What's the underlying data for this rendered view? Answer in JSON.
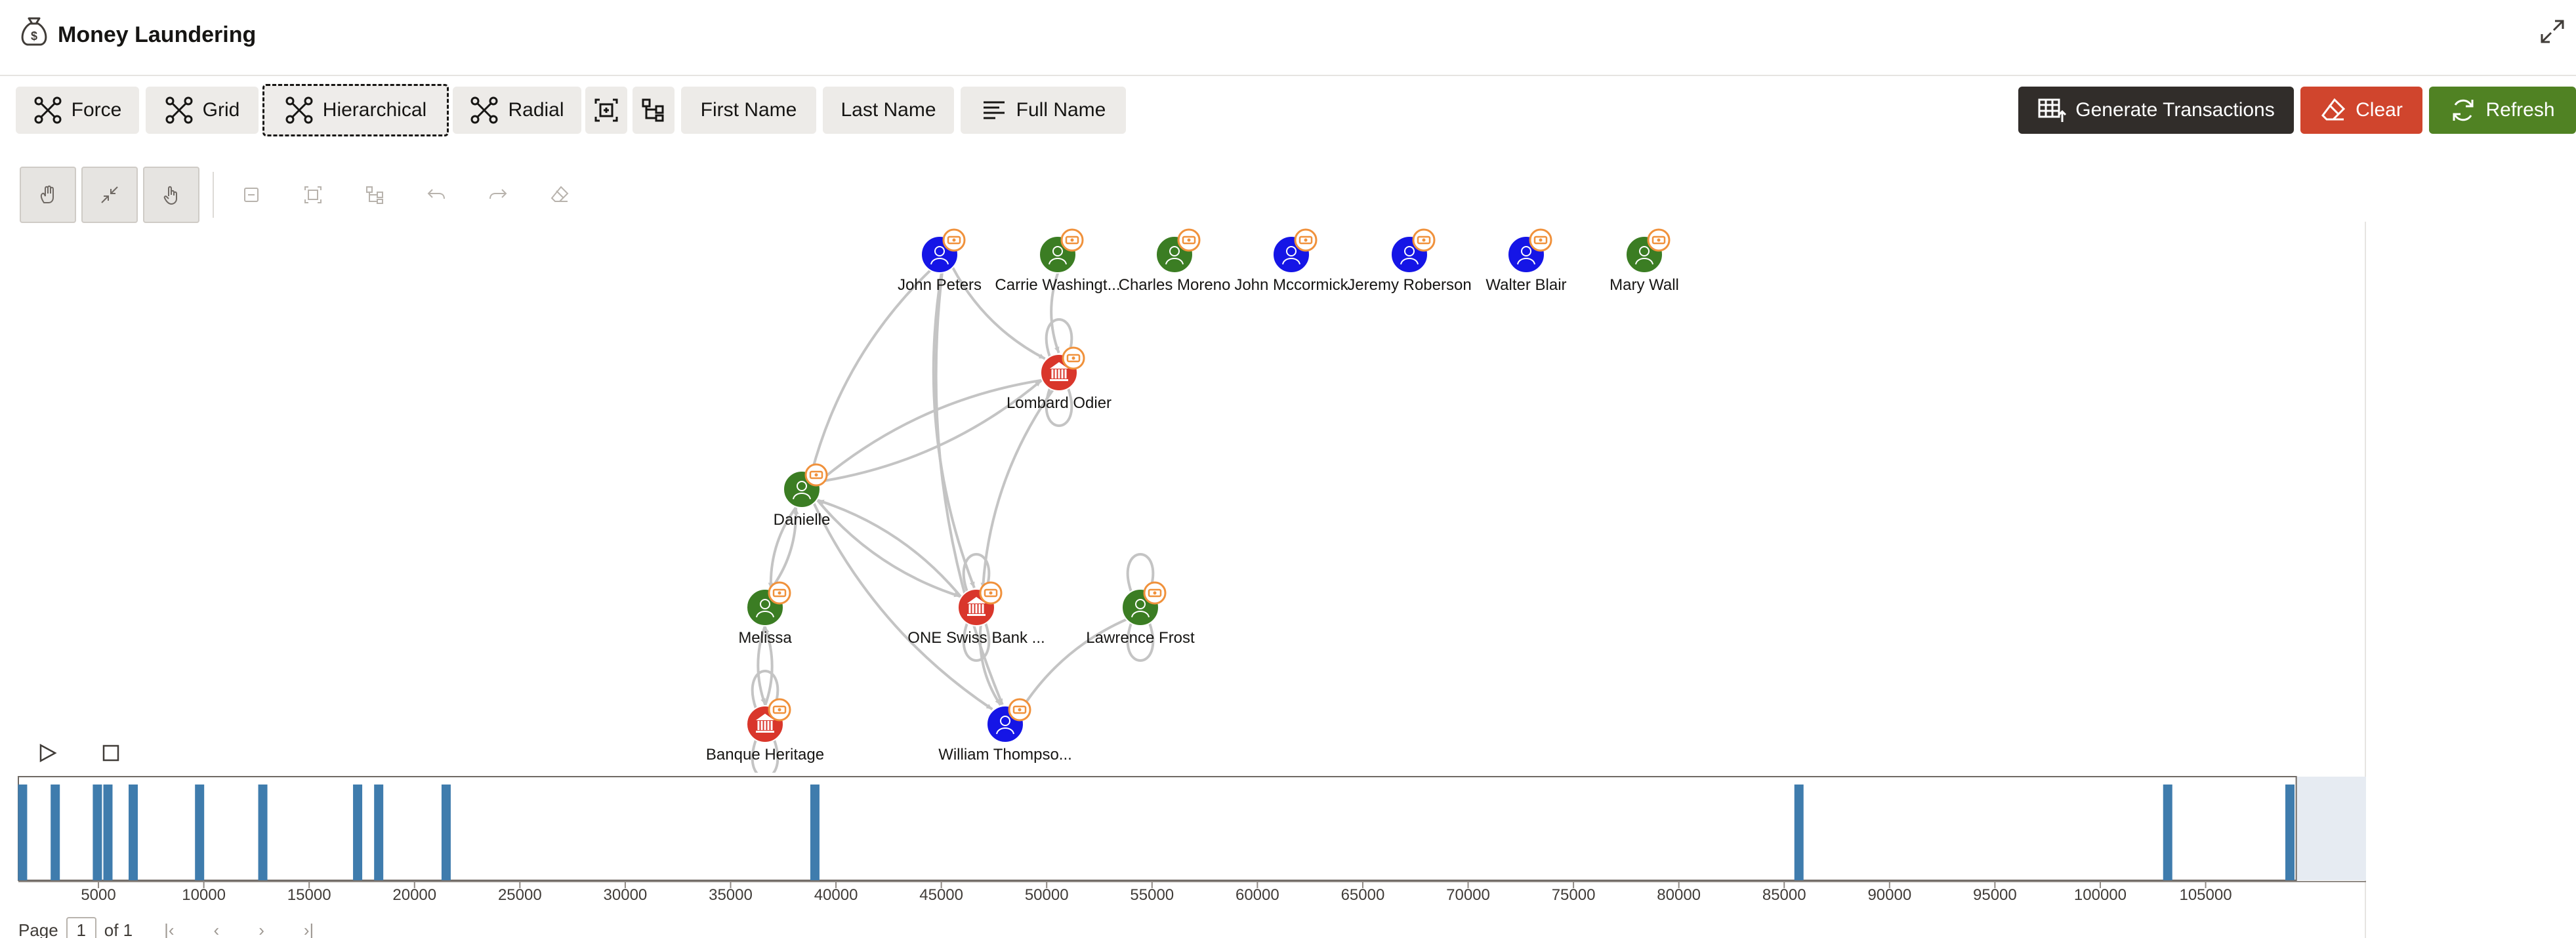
{
  "header": {
    "title": "Money Laundering",
    "app_icon": "money-bag-icon",
    "expand_icon": "expand-icon"
  },
  "toolbar": {
    "layouts": [
      {
        "label": "Force",
        "icon": "force-layout-icon"
      },
      {
        "label": "Grid",
        "icon": "grid-layout-icon"
      },
      {
        "label": "Hierarchical",
        "icon": "hierarchical-layout-icon",
        "selected": true
      },
      {
        "label": "Radial",
        "icon": "radial-layout-icon"
      }
    ],
    "icon_buttons": [
      "fit-view-icon",
      "tree-layout-icon"
    ],
    "label_buttons": [
      "First Name",
      "Last Name"
    ],
    "full_name": {
      "label": "Full Name",
      "icon": "lines-icon"
    },
    "generate": {
      "label": "Generate Transactions",
      "icon": "table-export-icon"
    },
    "clear": {
      "label": "Clear",
      "icon": "eraser-icon"
    },
    "refresh": {
      "label": "Refresh",
      "icon": "refresh-icon"
    }
  },
  "graph_tools": [
    "pan-icon",
    "collapse-icon",
    "hand-icon",
    "minimize-icon",
    "fit-icon",
    "arrange-icon",
    "undo-icon",
    "redo-icon",
    "erase-icon"
  ],
  "colors": {
    "person_blue": "#1515e6",
    "person_green": "#3b7d23",
    "bank_red": "#d9362b",
    "badge_orange": "#f0913b",
    "edge": "#c4c4c4",
    "bar": "#3f7cad",
    "clear": "#d0452d",
    "refresh": "#508223",
    "generate": "#312d2a"
  },
  "graph": {
    "nodes": [
      {
        "id": "jp",
        "label": "John Peters",
        "type": "person",
        "color": "blue"
      },
      {
        "id": "cw",
        "label": "Carrie Washingt...",
        "type": "person",
        "color": "green"
      },
      {
        "id": "cm",
        "label": "Charles Moreno",
        "type": "person",
        "color": "green"
      },
      {
        "id": "jm",
        "label": "John Mccormick",
        "type": "person",
        "color": "blue"
      },
      {
        "id": "jr",
        "label": "Jeremy Roberson",
        "type": "person",
        "color": "blue"
      },
      {
        "id": "wb",
        "label": "Walter Blair",
        "type": "person",
        "color": "blue"
      },
      {
        "id": "mw",
        "label": "Mary Wall",
        "type": "person",
        "color": "green"
      },
      {
        "id": "lo",
        "label": "Lombard Odier",
        "type": "bank",
        "color": "red"
      },
      {
        "id": "da",
        "label": "Danielle",
        "type": "person",
        "color": "green"
      },
      {
        "id": "me",
        "label": "Melissa",
        "type": "person",
        "color": "green"
      },
      {
        "id": "os",
        "label": "ONE Swiss Bank ...",
        "type": "bank",
        "color": "red"
      },
      {
        "id": "lf",
        "label": "Lawrence Frost",
        "type": "person",
        "color": "green"
      },
      {
        "id": "bh",
        "label": "Banque Heritage",
        "type": "bank",
        "color": "red"
      },
      {
        "id": "wt",
        "label": "William Thompso...",
        "type": "person",
        "color": "blue"
      }
    ],
    "edges": [
      [
        "jp",
        "lo"
      ],
      [
        "jp",
        "os"
      ],
      [
        "jp",
        "wt"
      ],
      [
        "jp",
        "da"
      ],
      [
        "cw",
        "lo"
      ],
      [
        "lo",
        "da"
      ],
      [
        "da",
        "lo"
      ],
      [
        "lo",
        "os"
      ],
      [
        "da",
        "os"
      ],
      [
        "os",
        "da"
      ],
      [
        "da",
        "wt"
      ],
      [
        "da",
        "me"
      ],
      [
        "me",
        "da"
      ],
      [
        "me",
        "bh"
      ],
      [
        "bh",
        "me"
      ],
      [
        "os",
        "wt"
      ],
      [
        "lf",
        "wt"
      ]
    ],
    "loops": [
      "lo",
      "os",
      "lf",
      "bh"
    ]
  },
  "timeline": {
    "ticks": [
      "5000",
      "10000",
      "15000",
      "20000",
      "25000",
      "30000",
      "35000",
      "40000",
      "45000",
      "50000",
      "55000",
      "60000",
      "65000",
      "70000",
      "75000",
      "80000",
      "85000",
      "90000",
      "95000",
      "100000",
      "105000"
    ],
    "tick_values": [
      5000,
      10000,
      15000,
      20000,
      25000,
      30000,
      35000,
      40000,
      45000,
      50000,
      55000,
      60000,
      65000,
      70000,
      75000,
      80000,
      85000,
      90000,
      95000,
      100000,
      105000
    ],
    "range": [
      1200,
      109000
    ],
    "brush_end": 109300,
    "bars": [
      1400,
      2950,
      4950,
      5450,
      6650,
      9800,
      12800,
      17300,
      18300,
      21500,
      39000,
      85700,
      103200,
      109000
    ],
    "play_icon": "play-icon",
    "stop_icon": "stop-icon"
  },
  "pager": {
    "prefix": "Page",
    "page": "1",
    "suffix": "of 1"
  }
}
